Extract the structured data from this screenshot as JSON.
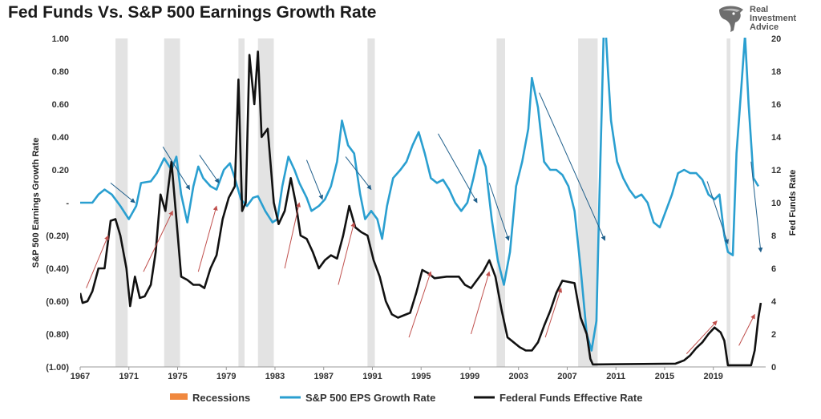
{
  "logo": {
    "line1": "Real",
    "line2": "Investment",
    "line3": "Advice",
    "icon": "eagle-head-icon"
  },
  "chart_data": {
    "type": "line",
    "title": "Fed Funds Vs. S&P 500 Earnings Growth Rate",
    "ylabel_left": "S&P 500 Earnings Growth Rate",
    "ylabel_right": "Fed Funds Rate",
    "xlim": [
      1967,
      2023.3
    ],
    "ylim_left": [
      -1.0,
      1.0
    ],
    "ylim_right": [
      0,
      20
    ],
    "x_ticks": [
      "1967",
      "1971",
      "1975",
      "1979",
      "1983",
      "1987",
      "1991",
      "1995",
      "1999",
      "2003",
      "2007",
      "2011",
      "2015",
      "2019"
    ],
    "y_left_ticks": [
      {
        "v": 1.0,
        "label": "1.00"
      },
      {
        "v": 0.8,
        "label": "0.80"
      },
      {
        "v": 0.6,
        "label": "0.60"
      },
      {
        "v": 0.4,
        "label": "0.40"
      },
      {
        "v": 0.2,
        "label": "0.20"
      },
      {
        "v": 0.0,
        "label": "-"
      },
      {
        "v": -0.2,
        "label": "(0.20)"
      },
      {
        "v": -0.4,
        "label": "(0.40)"
      },
      {
        "v": -0.6,
        "label": "(0.60)"
      },
      {
        "v": -0.8,
        "label": "(0.80)"
      },
      {
        "v": -1.0,
        "label": "(1.00)"
      }
    ],
    "y_right_ticks": [
      "0",
      "2",
      "4",
      "6",
      "8",
      "10",
      "12",
      "14",
      "16",
      "18",
      "20"
    ],
    "recessions": [
      [
        1969.9,
        1970.9
      ],
      [
        1973.9,
        1975.2
      ],
      [
        1980.0,
        1980.5
      ],
      [
        1981.6,
        1982.9
      ],
      [
        1990.6,
        1991.2
      ],
      [
        2001.2,
        2001.9
      ],
      [
        2007.9,
        2009.5
      ],
      [
        2020.1,
        2020.4
      ]
    ],
    "legend": [
      "Recessions",
      "S&P 500 EPS Growth Rate",
      "Federal Funds Effective Rate"
    ],
    "series": [
      {
        "name": "S&P 500 EPS Growth Rate",
        "axis": "left",
        "color": "#2a9fd0",
        "points": [
          [
            1967,
            0.0
          ],
          [
            1968,
            0.0
          ],
          [
            1968.5,
            0.05
          ],
          [
            1969,
            0.08
          ],
          [
            1969.6,
            0.05
          ],
          [
            1970.3,
            -0.02
          ],
          [
            1971,
            -0.1
          ],
          [
            1971.6,
            -0.02
          ],
          [
            1972,
            0.12
          ],
          [
            1972.8,
            0.13
          ],
          [
            1973.3,
            0.18
          ],
          [
            1973.9,
            0.27
          ],
          [
            1974.5,
            0.2
          ],
          [
            1974.9,
            0.28
          ],
          [
            1975.3,
            0.05
          ],
          [
            1975.8,
            -0.12
          ],
          [
            1976.3,
            0.1
          ],
          [
            1976.7,
            0.22
          ],
          [
            1977.1,
            0.15
          ],
          [
            1977.7,
            0.1
          ],
          [
            1978.2,
            0.08
          ],
          [
            1978.8,
            0.2
          ],
          [
            1979.3,
            0.24
          ],
          [
            1979.7,
            0.15
          ],
          [
            1980.2,
            0.02
          ],
          [
            1980.7,
            -0.02
          ],
          [
            1981.2,
            0.03
          ],
          [
            1981.6,
            0.04
          ],
          [
            1982.2,
            -0.05
          ],
          [
            1982.8,
            -0.12
          ],
          [
            1983.2,
            -0.1
          ],
          [
            1983.6,
            0.1
          ],
          [
            1984.1,
            0.28
          ],
          [
            1984.6,
            0.2
          ],
          [
            1985,
            0.12
          ],
          [
            1985.6,
            0.03
          ],
          [
            1986,
            -0.05
          ],
          [
            1986.6,
            -0.02
          ],
          [
            1987.1,
            0.02
          ],
          [
            1987.6,
            0.1
          ],
          [
            1988.1,
            0.25
          ],
          [
            1988.5,
            0.5
          ],
          [
            1989,
            0.35
          ],
          [
            1989.5,
            0.3
          ],
          [
            1990,
            0.05
          ],
          [
            1990.4,
            -0.1
          ],
          [
            1990.9,
            -0.05
          ],
          [
            1991.4,
            -0.1
          ],
          [
            1991.8,
            -0.22
          ],
          [
            1992.2,
            -0.02
          ],
          [
            1992.7,
            0.15
          ],
          [
            1993.3,
            0.2
          ],
          [
            1993.8,
            0.25
          ],
          [
            1994.3,
            0.35
          ],
          [
            1994.8,
            0.43
          ],
          [
            1995.3,
            0.3
          ],
          [
            1995.8,
            0.15
          ],
          [
            1996.3,
            0.12
          ],
          [
            1996.8,
            0.14
          ],
          [
            1997.3,
            0.08
          ],
          [
            1997.8,
            0.0
          ],
          [
            1998.3,
            -0.05
          ],
          [
            1998.8,
            0.0
          ],
          [
            1999.3,
            0.15
          ],
          [
            1999.8,
            0.32
          ],
          [
            2000.3,
            0.22
          ],
          [
            2000.8,
            -0.1
          ],
          [
            2001.3,
            -0.35
          ],
          [
            2001.8,
            -0.5
          ],
          [
            2002.3,
            -0.3
          ],
          [
            2002.8,
            0.1
          ],
          [
            2003.3,
            0.25
          ],
          [
            2003.8,
            0.45
          ],
          [
            2004.1,
            0.76
          ],
          [
            2004.6,
            0.58
          ],
          [
            2005.1,
            0.25
          ],
          [
            2005.6,
            0.2
          ],
          [
            2006.1,
            0.2
          ],
          [
            2006.6,
            0.17
          ],
          [
            2007.1,
            0.1
          ],
          [
            2007.6,
            -0.05
          ],
          [
            2008.1,
            -0.4
          ],
          [
            2008.6,
            -0.8
          ],
          [
            2009.0,
            -0.9
          ],
          [
            2009.4,
            -0.72
          ],
          [
            2009.65,
            0.05
          ],
          [
            2009.85,
            0.6
          ],
          [
            2010.05,
            1.2
          ],
          [
            2010.35,
            0.8
          ],
          [
            2010.6,
            0.5
          ],
          [
            2011.1,
            0.25
          ],
          [
            2011.6,
            0.15
          ],
          [
            2012.1,
            0.08
          ],
          [
            2012.6,
            0.03
          ],
          [
            2013.1,
            0.05
          ],
          [
            2013.6,
            0.0
          ],
          [
            2014.1,
            -0.12
          ],
          [
            2014.6,
            -0.15
          ],
          [
            2015.1,
            -0.05
          ],
          [
            2015.6,
            0.05
          ],
          [
            2016.1,
            0.18
          ],
          [
            2016.6,
            0.2
          ],
          [
            2017.1,
            0.18
          ],
          [
            2017.6,
            0.18
          ],
          [
            2018.1,
            0.14
          ],
          [
            2018.6,
            0.05
          ],
          [
            2019.1,
            0.02
          ],
          [
            2019.5,
            0.05
          ],
          [
            2019.9,
            -0.2
          ],
          [
            2020.2,
            -0.3
          ],
          [
            2020.6,
            -0.32
          ],
          [
            2020.9,
            0.3
          ],
          [
            2021.3,
            0.7
          ],
          [
            2021.6,
            1.02
          ],
          [
            2021.9,
            0.6
          ],
          [
            2022.3,
            0.15
          ],
          [
            2022.7,
            0.1
          ]
        ]
      },
      {
        "name": "Federal Funds Effective Rate",
        "axis": "right",
        "color": "#111111",
        "points": [
          [
            1967,
            4.5
          ],
          [
            1967.2,
            3.9
          ],
          [
            1967.6,
            4.0
          ],
          [
            1968,
            4.6
          ],
          [
            1968.5,
            6.0
          ],
          [
            1969,
            6.0
          ],
          [
            1969.5,
            8.9
          ],
          [
            1969.9,
            9.0
          ],
          [
            1970.3,
            8.0
          ],
          [
            1970.8,
            6.0
          ],
          [
            1971.1,
            3.7
          ],
          [
            1971.5,
            5.5
          ],
          [
            1971.9,
            4.2
          ],
          [
            1972.3,
            4.3
          ],
          [
            1972.8,
            5.0
          ],
          [
            1973.2,
            7.0
          ],
          [
            1973.6,
            10.5
          ],
          [
            1974,
            9.5
          ],
          [
            1974.5,
            12.5
          ],
          [
            1974.9,
            9.0
          ],
          [
            1975.3,
            5.5
          ],
          [
            1975.8,
            5.3
          ],
          [
            1976.3,
            5.0
          ],
          [
            1976.8,
            5.0
          ],
          [
            1977.2,
            4.8
          ],
          [
            1977.7,
            6.0
          ],
          [
            1978.2,
            6.8
          ],
          [
            1978.7,
            9.0
          ],
          [
            1979.2,
            10.3
          ],
          [
            1979.7,
            11.0
          ],
          [
            1980.0,
            17.5
          ],
          [
            1980.3,
            9.5
          ],
          [
            1980.6,
            10.0
          ],
          [
            1980.9,
            19.0
          ],
          [
            1981.3,
            16.0
          ],
          [
            1981.6,
            19.2
          ],
          [
            1981.9,
            14.0
          ],
          [
            1982.4,
            14.5
          ],
          [
            1982.9,
            10.0
          ],
          [
            1983.3,
            8.7
          ],
          [
            1983.8,
            9.5
          ],
          [
            1984.3,
            11.5
          ],
          [
            1984.7,
            10.0
          ],
          [
            1985.1,
            8.0
          ],
          [
            1985.6,
            7.8
          ],
          [
            1986.1,
            7.0
          ],
          [
            1986.6,
            6.0
          ],
          [
            1987.1,
            6.5
          ],
          [
            1987.6,
            6.8
          ],
          [
            1988.1,
            6.6
          ],
          [
            1988.6,
            8.0
          ],
          [
            1989.1,
            9.8
          ],
          [
            1989.6,
            8.5
          ],
          [
            1990.1,
            8.2
          ],
          [
            1990.6,
            8.0
          ],
          [
            1991.1,
            6.5
          ],
          [
            1991.6,
            5.5
          ],
          [
            1992.1,
            4.0
          ],
          [
            1992.6,
            3.2
          ],
          [
            1993.1,
            3.0
          ],
          [
            1994.1,
            3.3
          ],
          [
            1994.6,
            4.5
          ],
          [
            1995.1,
            5.9
          ],
          [
            1995.6,
            5.7
          ],
          [
            1996.1,
            5.4
          ],
          [
            1997.1,
            5.5
          ],
          [
            1998.1,
            5.5
          ],
          [
            1998.6,
            5.0
          ],
          [
            1999.1,
            4.8
          ],
          [
            1999.6,
            5.3
          ],
          [
            2000.1,
            5.8
          ],
          [
            2000.6,
            6.5
          ],
          [
            2001.1,
            5.5
          ],
          [
            2001.6,
            3.5
          ],
          [
            2002.1,
            1.8
          ],
          [
            2003.1,
            1.2
          ],
          [
            2003.6,
            1.0
          ],
          [
            2004.1,
            1.0
          ],
          [
            2004.6,
            1.5
          ],
          [
            2005.1,
            2.5
          ],
          [
            2005.6,
            3.4
          ],
          [
            2006.1,
            4.5
          ],
          [
            2006.6,
            5.25
          ],
          [
            2007.6,
            5.1
          ],
          [
            2008.1,
            3.0
          ],
          [
            2008.6,
            2.0
          ],
          [
            2008.9,
            0.5
          ],
          [
            2009.1,
            0.15
          ],
          [
            2015.9,
            0.2
          ],
          [
            2016.6,
            0.4
          ],
          [
            2017.1,
            0.7
          ],
          [
            2017.6,
            1.15
          ],
          [
            2018.1,
            1.5
          ],
          [
            2018.6,
            2.0
          ],
          [
            2019.1,
            2.4
          ],
          [
            2019.6,
            2.1
          ],
          [
            2019.9,
            1.6
          ],
          [
            2020.2,
            0.1
          ],
          [
            2022.1,
            0.1
          ],
          [
            2022.4,
            1.0
          ],
          [
            2022.7,
            3.0
          ],
          [
            2022.9,
            3.9
          ]
        ]
      }
    ],
    "annotations": {
      "red_arrows": [
        [
          1967.5,
          -0.52,
          1969.3,
          -0.2
        ],
        [
          1972.2,
          -0.42,
          1974.6,
          -0.05
        ],
        [
          1976.7,
          -0.42,
          1978.2,
          -0.02
        ],
        [
          1983.8,
          -0.4,
          1985.0,
          0.0
        ],
        [
          1988.2,
          -0.5,
          1989.5,
          -0.12
        ],
        [
          1994.0,
          -0.82,
          1995.8,
          -0.42
        ],
        [
          1999.1,
          -0.8,
          2000.6,
          -0.42
        ],
        [
          2005.2,
          -0.82,
          2006.5,
          -0.52
        ],
        [
          2016.8,
          -0.92,
          2019.3,
          -0.72
        ],
        [
          2021.1,
          -0.87,
          2022.4,
          -0.68
        ]
      ],
      "blue_arrows": [
        [
          1969.5,
          0.12,
          1971.5,
          0.0
        ],
        [
          1973.8,
          0.34,
          1976.0,
          0.08
        ],
        [
          1976.8,
          0.29,
          1978.4,
          0.12
        ],
        [
          1985.6,
          0.26,
          1986.9,
          0.02
        ],
        [
          1988.8,
          0.28,
          1990.9,
          0.08
        ],
        [
          1996.4,
          0.42,
          1999.6,
          0.0
        ],
        [
          2000.6,
          0.12,
          2002.2,
          -0.23
        ],
        [
          2004.7,
          0.67,
          2010.1,
          -0.23
        ],
        [
          2018.5,
          0.13,
          2020.2,
          -0.25
        ],
        [
          2022.1,
          0.25,
          2022.9,
          -0.3
        ]
      ]
    }
  }
}
